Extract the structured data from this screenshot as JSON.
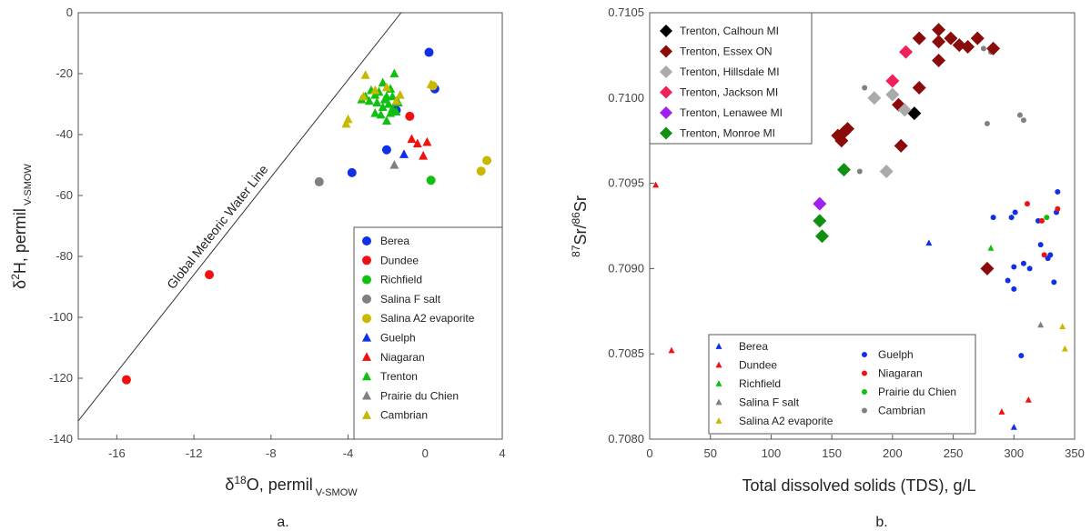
{
  "chart_data": [
    {
      "type": "scatter",
      "panel_label": "a.",
      "xlabel": {
        "main": "δ",
        "sup": "18",
        "after": "O, permil",
        "sub": " V-SMOW"
      },
      "ylabel": {
        "main": "δ",
        "sup": "2",
        "after": "H, permil",
        "sub": " V-SMOW"
      },
      "xlim": [
        -18,
        4
      ],
      "ylim": [
        -140,
        0
      ],
      "xticks": [
        {
          "value": -16,
          "label": "-16"
        },
        {
          "value": -12,
          "label": "-12"
        },
        {
          "value": -8,
          "label": "-8"
        },
        {
          "value": -4,
          "label": "-4"
        },
        {
          "value": 0,
          "label": "0"
        },
        {
          "value": 4,
          "label": "4"
        }
      ],
      "yticks": [
        {
          "value": 0,
          "label": "0"
        },
        {
          "value": -20,
          "label": "-20"
        },
        {
          "value": -40,
          "label": "-40"
        },
        {
          "value": -60,
          "label": "-60"
        },
        {
          "value": -80,
          "label": "-80"
        },
        {
          "value": -100,
          "label": "-100"
        },
        {
          "value": -120,
          "label": "-120"
        },
        {
          "value": -140,
          "label": "-140"
        }
      ],
      "reference_line": {
        "label": "Global Meteoric Water Line",
        "slope": 8,
        "intercept": 10
      },
      "legend": "bottom-right",
      "series": [
        {
          "name": "Berea",
          "marker": "circle",
          "color": "#1030e8",
          "points": [
            [
              0.2,
              -13
            ],
            [
              0.5,
              -25
            ],
            [
              -2.0,
              -45
            ],
            [
              -3.8,
              -52.5
            ],
            [
              -1.5,
              -32
            ]
          ]
        },
        {
          "name": "Dundee",
          "marker": "circle",
          "color": "#f01010",
          "points": [
            [
              -15.5,
              -120.5
            ],
            [
              -11.2,
              -86
            ],
            [
              -0.8,
              -34
            ]
          ]
        },
        {
          "name": "Richfield",
          "marker": "circle",
          "color": "#10c010",
          "points": [
            [
              0.3,
              -55
            ]
          ]
        },
        {
          "name": "Salina F salt",
          "marker": "circle",
          "color": "#808080",
          "points": [
            [
              -5.5,
              -55.5
            ]
          ]
        },
        {
          "name": "Salina A2 evaporite",
          "marker": "circle",
          "color": "#c8b800",
          "points": [
            [
              3.2,
              -48.5
            ],
            [
              2.9,
              -52
            ],
            [
              0.4,
              -24
            ]
          ]
        },
        {
          "name": "Guelph",
          "marker": "triangle",
          "color": "#1030e8",
          "points": [
            [
              -1.1,
              -46.5
            ],
            [
              -1.6,
              -31.5
            ]
          ]
        },
        {
          "name": "Niagaran",
          "marker": "triangle",
          "color": "#f01010",
          "points": [
            [
              -0.7,
              -41.5
            ],
            [
              -0.4,
              -43
            ],
            [
              0.1,
              -42.5
            ],
            [
              -0.1,
              -47
            ]
          ]
        },
        {
          "name": "Trenton",
          "marker": "triangle",
          "color": "#10c010",
          "points": [
            [
              -1.6,
              -20
            ],
            [
              -2.2,
              -23
            ],
            [
              -2.8,
              -25.5
            ],
            [
              -3.1,
              -27.5
            ],
            [
              -3.3,
              -28.5
            ],
            [
              -2.9,
              -29
            ],
            [
              -2.6,
              -27
            ],
            [
              -2.4,
              -26
            ],
            [
              -2.0,
              -27.5
            ],
            [
              -1.8,
              -25
            ],
            [
              -1.7,
              -27.5
            ],
            [
              -2.5,
              -29.5
            ],
            [
              -2.2,
              -31
            ],
            [
              -1.9,
              -30
            ],
            [
              -1.7,
              -31.5
            ],
            [
              -1.5,
              -32.5
            ],
            [
              -2.3,
              -33.5
            ],
            [
              -2.0,
              -35.5
            ],
            [
              -2.6,
              -33
            ],
            [
              -1.4,
              -29.5
            ],
            [
              -2.1,
              -28.5
            ],
            [
              -1.8,
              -33
            ]
          ]
        },
        {
          "name": "Prairie du Chien",
          "marker": "triangle",
          "color": "#808080",
          "points": [
            [
              -1.6,
              -50
            ]
          ]
        },
        {
          "name": "Cambrian",
          "marker": "triangle",
          "color": "#c8b800",
          "points": [
            [
              -3.1,
              -20.5
            ],
            [
              -4.0,
              -35
            ],
            [
              -4.1,
              -36.5
            ],
            [
              -2.6,
              -25.5
            ],
            [
              -3.2,
              -27.5
            ],
            [
              -2.0,
              -24.5
            ],
            [
              -1.3,
              -27
            ],
            [
              0.3,
              -23.5
            ],
            [
              -1.5,
              -29
            ]
          ]
        }
      ]
    },
    {
      "type": "scatter",
      "panel_label": "b.",
      "xlabel": {
        "main": "Total dissolved solids (TDS), g/L"
      },
      "ylabel": {
        "sup1": "87",
        "mid": "Sr/",
        "sup2": "86",
        "after": "Sr"
      },
      "xlim": [
        0,
        350
      ],
      "ylim": [
        0.708,
        0.7105
      ],
      "xticks": [
        {
          "value": 0,
          "label": "0"
        },
        {
          "value": 50,
          "label": "50"
        },
        {
          "value": 100,
          "label": "100"
        },
        {
          "value": 150,
          "label": "150"
        },
        {
          "value": 200,
          "label": "200"
        },
        {
          "value": 250,
          "label": "250"
        },
        {
          "value": 300,
          "label": "300"
        },
        {
          "value": 350,
          "label": "350"
        }
      ],
      "yticks": [
        {
          "value": 0.708,
          "label": "0.7080"
        },
        {
          "value": 0.7085,
          "label": "0.7085"
        },
        {
          "value": 0.709,
          "label": "0.7090"
        },
        {
          "value": 0.7095,
          "label": "0.7095"
        },
        {
          "value": 0.71,
          "label": "0.7100"
        },
        {
          "value": 0.7105,
          "label": "0.7105"
        }
      ],
      "legend_top": "top-left",
      "legend_bottom": "bottom-center",
      "series_top": [
        {
          "name": "Trenton, Calhoun  MI",
          "marker": "diamond",
          "color": "#000000",
          "points": [
            [
              218,
              0.70991
            ]
          ]
        },
        {
          "name": "Trenton, Essex ON",
          "marker": "diamond",
          "color": "#8b0a0a",
          "points": [
            [
              155,
              0.70978
            ],
            [
              158,
              0.70975
            ],
            [
              160,
              0.7098
            ],
            [
              163,
              0.70982
            ],
            [
              205,
              0.70996
            ],
            [
              207,
              0.70972
            ],
            [
              222,
              0.71006
            ],
            [
              222,
              0.71035
            ],
            [
              238,
              0.7104
            ],
            [
              238,
              0.71033
            ],
            [
              238,
              0.71022
            ],
            [
              248,
              0.71035
            ],
            [
              255,
              0.71031
            ],
            [
              262,
              0.7103
            ],
            [
              270,
              0.71035
            ],
            [
              283,
              0.71029
            ],
            [
              278,
              0.709
            ]
          ]
        },
        {
          "name": "Trenton, Hillsdale MI",
          "marker": "diamond",
          "color": "#aaaaaa",
          "points": [
            [
              185,
              0.71
            ],
            [
              200,
              0.71002
            ],
            [
              210,
              0.70993
            ],
            [
              195,
              0.70957
            ]
          ]
        },
        {
          "name": "Trenton, Jackson MI",
          "marker": "diamond",
          "color": "#f0205a",
          "points": [
            [
              200,
              0.7101
            ],
            [
              211,
              0.71027
            ]
          ]
        },
        {
          "name": "Trenton, Lenawee MI",
          "marker": "diamond",
          "color": "#a020f0",
          "points": [
            [
              140,
              0.70938
            ]
          ]
        },
        {
          "name": "Trenton, Monroe MI",
          "marker": "diamond",
          "color": "#109010",
          "points": [
            [
              160,
              0.70958
            ],
            [
              140,
              0.70928
            ],
            [
              142,
              0.70919
            ]
          ]
        }
      ],
      "series_bottom": [
        {
          "name": "Berea",
          "marker": "triangle",
          "color": "#1030e8",
          "points": [
            [
              230,
              0.70915
            ],
            [
              300,
              0.70807
            ]
          ]
        },
        {
          "name": "Dundee",
          "marker": "triangle",
          "color": "#f01010",
          "points": [
            [
              5,
              0.70949
            ],
            [
              18,
              0.70852
            ],
            [
              290,
              0.70816
            ],
            [
              312,
              0.70823
            ]
          ]
        },
        {
          "name": "Richfield",
          "marker": "triangle",
          "color": "#10c010",
          "points": [
            [
              281,
              0.70912
            ]
          ]
        },
        {
          "name": "Salina F salt",
          "marker": "triangle",
          "color": "#808080",
          "points": [
            [
              322,
              0.70867
            ]
          ]
        },
        {
          "name": "Salina A2 evaporite",
          "marker": "triangle",
          "color": "#c8b800",
          "points": [
            [
              340,
              0.70866
            ],
            [
              342,
              0.70853
            ]
          ]
        },
        {
          "name": "Guelph",
          "marker": "circle",
          "color": "#1030e8",
          "points": [
            [
              283,
              0.7093
            ],
            [
              298,
              0.7093
            ],
            [
              301,
              0.70933
            ],
            [
              320,
              0.70928
            ],
            [
              322,
              0.70914
            ],
            [
              336,
              0.70945
            ],
            [
              335,
              0.70933
            ],
            [
              328,
              0.70906
            ],
            [
              330,
              0.70908
            ],
            [
              300,
              0.70901
            ],
            [
              308,
              0.70903
            ],
            [
              313,
              0.709
            ],
            [
              295,
              0.70893
            ],
            [
              300,
              0.70888
            ],
            [
              333,
              0.70892
            ],
            [
              306,
              0.70849
            ]
          ]
        },
        {
          "name": "Niagaran",
          "marker": "circle",
          "color": "#f01010",
          "points": [
            [
              311,
              0.70938
            ],
            [
              323,
              0.70928
            ],
            [
              325,
              0.70908
            ],
            [
              336,
              0.70935
            ]
          ]
        },
        {
          "name": "Prairie du Chien",
          "marker": "circle",
          "color": "#10c010",
          "points": [
            [
              327,
              0.7093
            ]
          ]
        },
        {
          "name": "Cambrian",
          "marker": "circle",
          "color": "#808080",
          "points": [
            [
              177,
              0.71006
            ],
            [
              173,
              0.70957
            ],
            [
              208,
              0.70994
            ],
            [
              275,
              0.71029
            ],
            [
              281,
              0.71027
            ],
            [
              278,
              0.70985
            ],
            [
              305,
              0.7099
            ],
            [
              308,
              0.70987
            ]
          ]
        }
      ]
    }
  ]
}
